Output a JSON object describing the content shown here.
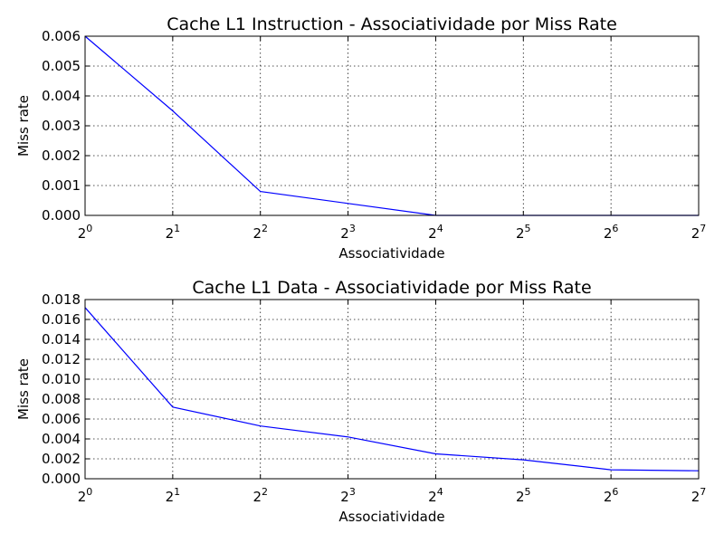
{
  "colors": {
    "series": "#0000ff",
    "axes": "#000000",
    "background": "#ffffff"
  },
  "chart_data": [
    {
      "type": "line",
      "title": "Cache L1 Instruction - Associatividade por Miss Rate",
      "xlabel": "Associatividade",
      "ylabel": "Miss rate",
      "xscale": "log2",
      "grid": true,
      "xlim": [
        1,
        128
      ],
      "ylim": [
        0,
        0.006
      ],
      "x": [
        1,
        2,
        4,
        8,
        16,
        32,
        64,
        128
      ],
      "x_tick_bases": [
        "2",
        "2",
        "2",
        "2",
        "2",
        "2",
        "2",
        "2"
      ],
      "x_tick_exponents": [
        "0",
        "1",
        "2",
        "3",
        "4",
        "5",
        "6",
        "7"
      ],
      "y_ticks": [
        "0.000",
        "0.001",
        "0.002",
        "0.003",
        "0.004",
        "0.005",
        "0.006"
      ],
      "series": [
        {
          "values": [
            0.006,
            0.0035,
            0.0008,
            0.0004,
            0.0,
            0.0,
            0.0,
            0.0
          ]
        }
      ]
    },
    {
      "type": "line",
      "title": "Cache L1 Data - Associatividade por Miss Rate",
      "xlabel": "Associatividade",
      "ylabel": "Miss rate",
      "xscale": "log2",
      "grid": true,
      "xlim": [
        1,
        128
      ],
      "ylim": [
        0,
        0.018
      ],
      "x": [
        1,
        2,
        4,
        8,
        16,
        32,
        64,
        128
      ],
      "x_tick_bases": [
        "2",
        "2",
        "2",
        "2",
        "2",
        "2",
        "2",
        "2"
      ],
      "x_tick_exponents": [
        "0",
        "1",
        "2",
        "3",
        "4",
        "5",
        "6",
        "7"
      ],
      "y_ticks": [
        "0.000",
        "0.002",
        "0.004",
        "0.006",
        "0.008",
        "0.010",
        "0.012",
        "0.014",
        "0.016",
        "0.018"
      ],
      "series": [
        {
          "values": [
            0.0172,
            0.0072,
            0.0053,
            0.0042,
            0.0025,
            0.0019,
            0.0009,
            0.0008
          ]
        }
      ]
    }
  ]
}
